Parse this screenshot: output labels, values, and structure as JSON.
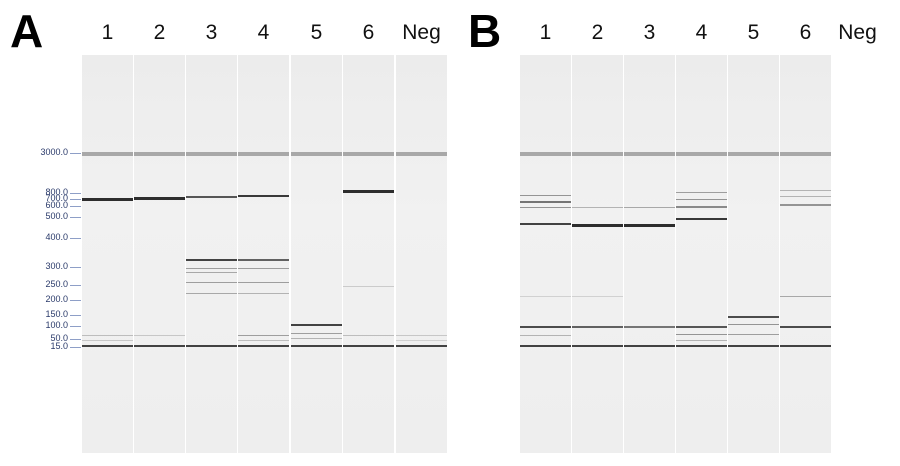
{
  "panels": [
    {
      "letter": "A",
      "lane_labels": [
        "1",
        "2",
        "3",
        "4",
        "5",
        "6",
        "Neg"
      ],
      "ladder": [
        "3000.0",
        "800.0",
        "700.0",
        "600.0",
        "500.0",
        "400.0",
        "300.0",
        "250.0",
        "200.0",
        "150.0",
        "100.0",
        "50.0",
        "15.0"
      ]
    },
    {
      "letter": "B",
      "lane_labels": [
        "1",
        "2",
        "3",
        "4",
        "5",
        "6",
        "Neg"
      ],
      "ladder": []
    }
  ]
}
